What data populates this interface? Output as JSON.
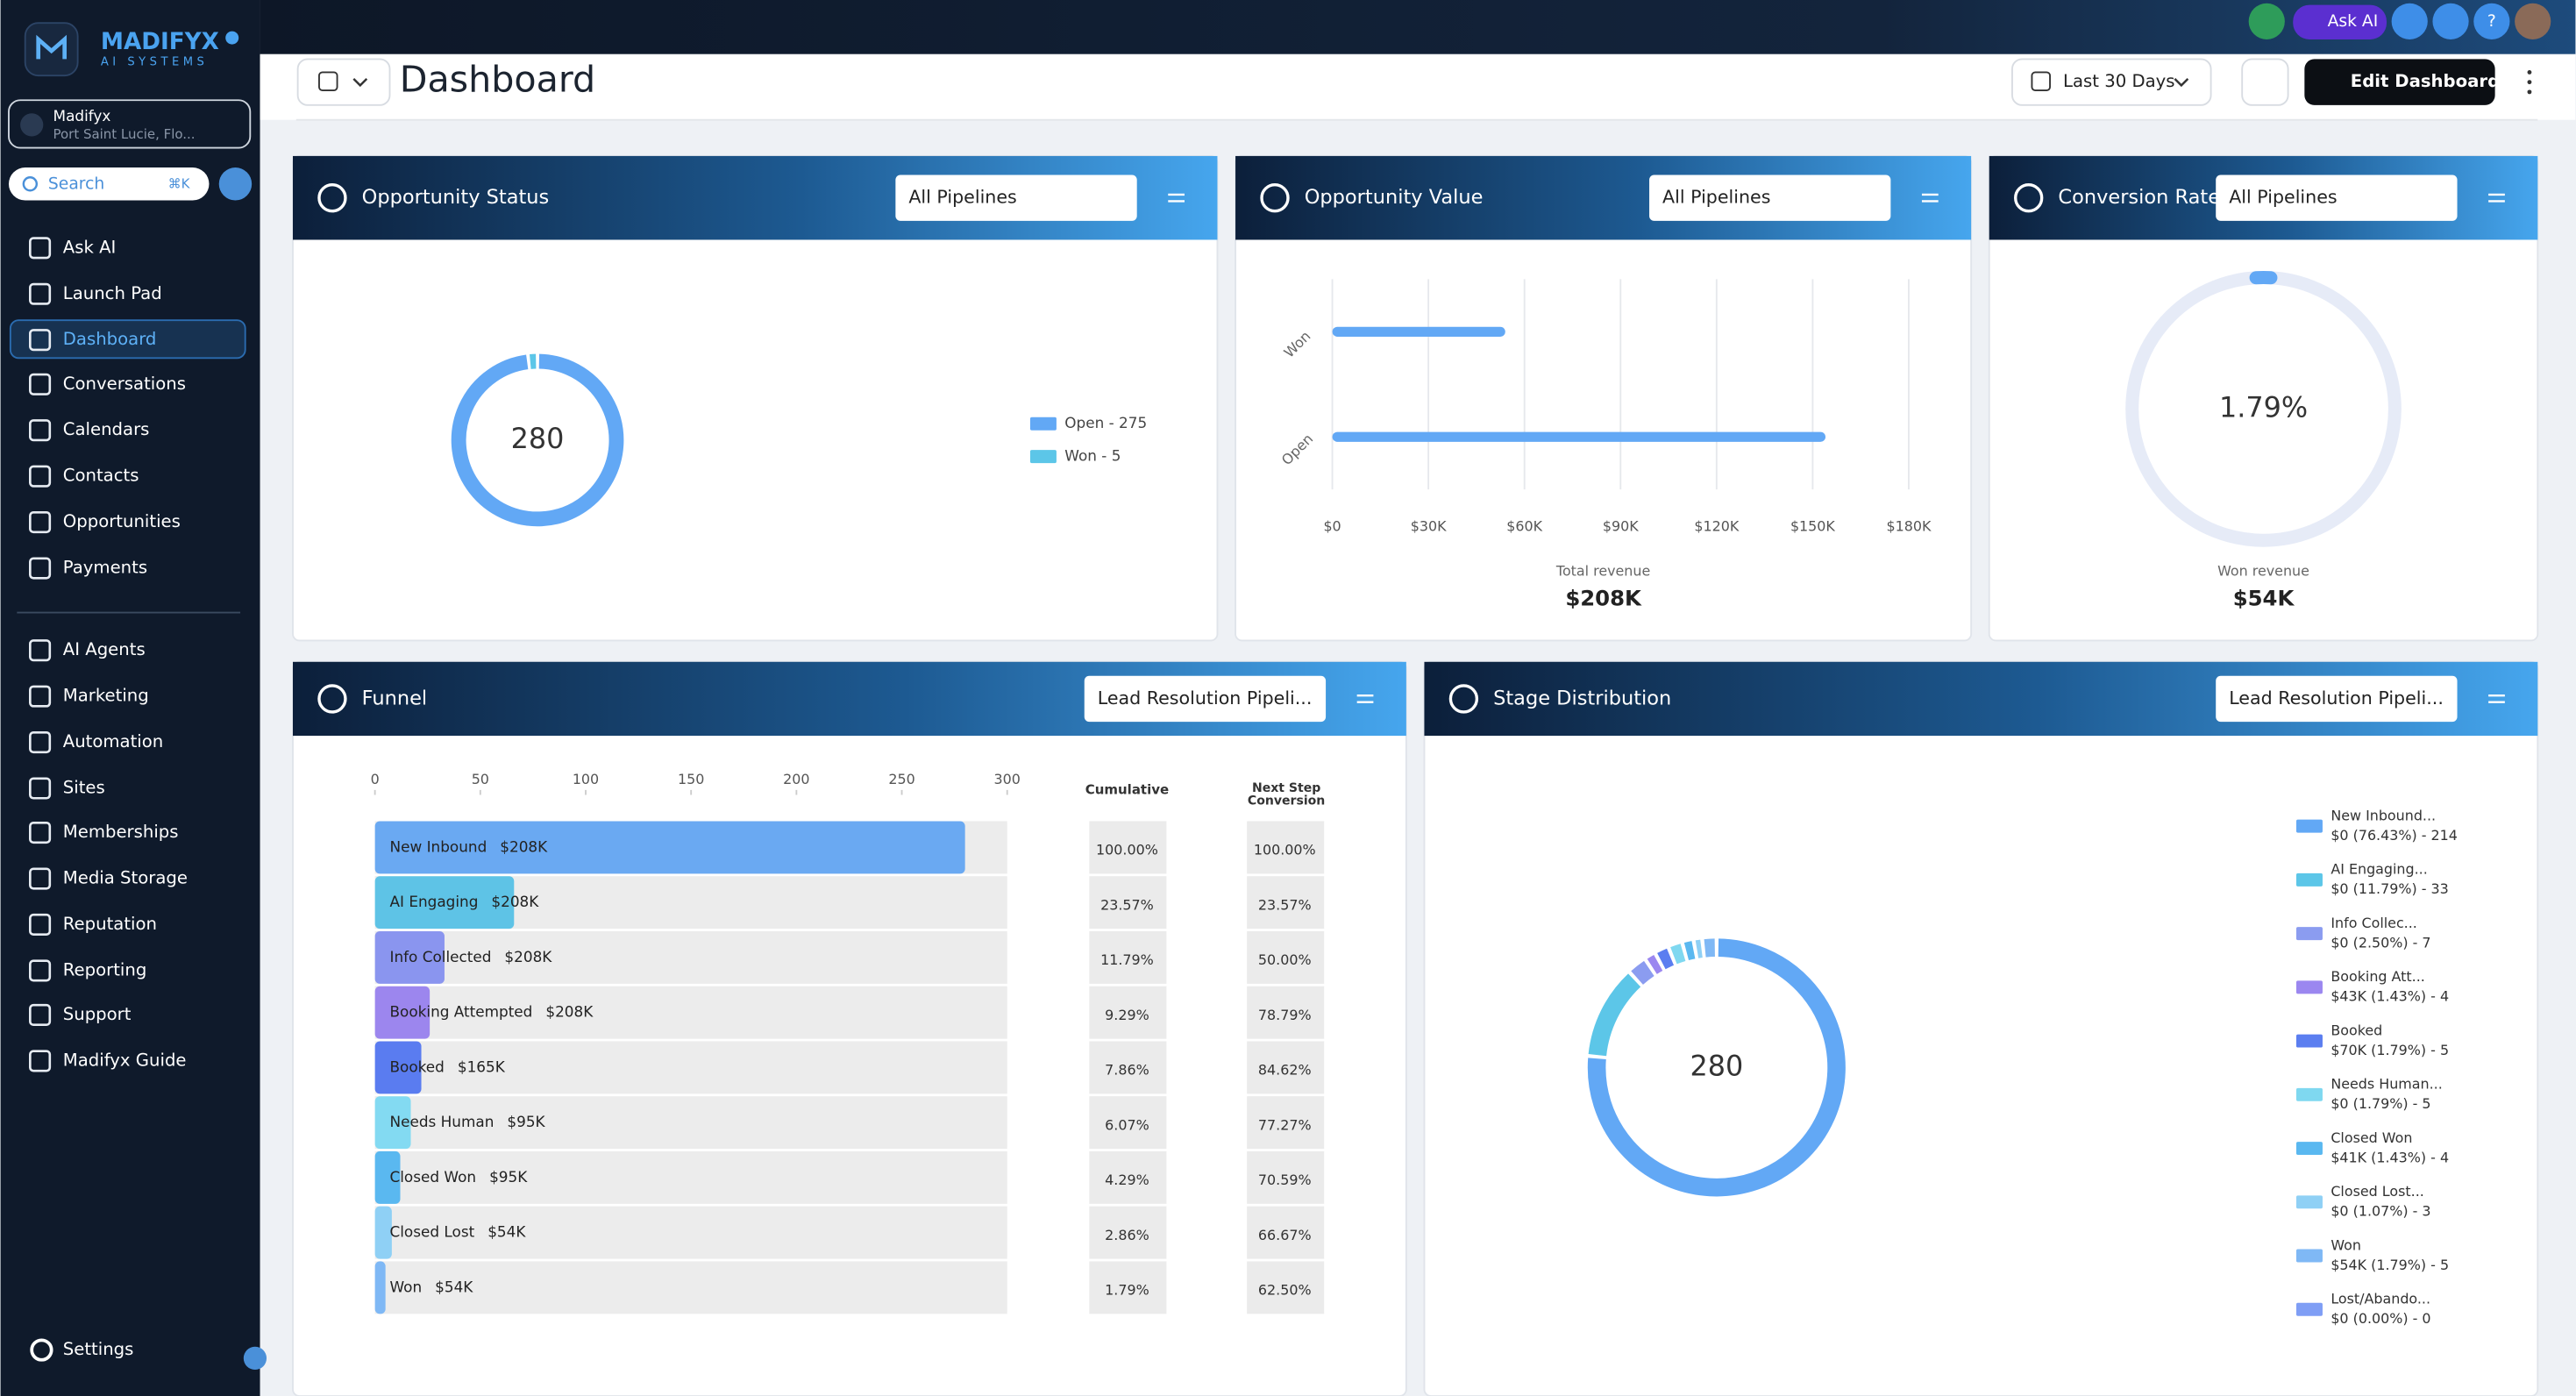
{
  "brand": {
    "name": "MADIFYX",
    "tagline": "AI SYSTEMS"
  },
  "account": {
    "name": "Madifyx",
    "location": "Port Saint Lucie, Flo..."
  },
  "search": {
    "placeholder": "Search",
    "shortcut": "⌘K"
  },
  "nav": [
    "Ask AI",
    "Launch Pad",
    "Dashboard",
    "Conversations",
    "Calendars",
    "Contacts",
    "Opportunities",
    "Payments"
  ],
  "nav2": [
    "AI Agents",
    "Marketing",
    "Automation",
    "Sites",
    "Memberships",
    "Media Storage",
    "Reputation",
    "Reporting",
    "Support",
    "Madifyx Guide"
  ],
  "settings": "Settings",
  "topbar": {
    "ask_ai": "Ask AI",
    "help": "?"
  },
  "header": {
    "title": "Dashboard",
    "date_range": "Last 30 Days",
    "edit": "Edit Dashboard"
  },
  "opportunity_status": {
    "title": "Opportunity Status",
    "filter": "All Pipelines",
    "total": 280,
    "legend": [
      {
        "label": "Open - 275",
        "value": 275,
        "color": "#62a8f5"
      },
      {
        "label": "Won - 5",
        "value": 5,
        "color": "#5cc6e8"
      }
    ]
  },
  "opportunity_value": {
    "title": "Opportunity Value",
    "filter": "All Pipelines",
    "type": "bar",
    "categories": [
      "Won",
      "Open"
    ],
    "values": [
      54000,
      154000
    ],
    "color": "#62a8f5",
    "xlim": [
      0,
      180000
    ],
    "xticks": [
      {
        "value": 0,
        "label": "$0"
      },
      {
        "value": 30000,
        "label": "$30K"
      },
      {
        "value": 60000,
        "label": "$60K"
      },
      {
        "value": 90000,
        "label": "$90K"
      },
      {
        "value": 120000,
        "label": "$120K"
      },
      {
        "value": 150000,
        "label": "$150K"
      },
      {
        "value": 180000,
        "label": "$180K"
      }
    ],
    "caption": "Total revenue",
    "total": "$208K"
  },
  "conversion_rate": {
    "title": "Conversion Rate",
    "filter": "All Pipelines",
    "value": 1.79,
    "value_label": "1.79%",
    "caption": "Won revenue",
    "total": "$54K"
  },
  "funnel": {
    "title": "Funnel",
    "filter": "Lead Resolution Pipeli...",
    "xlim": [
      0,
      300
    ],
    "xticks": [
      0,
      50,
      100,
      150,
      200,
      250,
      300
    ],
    "cumulative_header": "Cumulative",
    "next_header": "Next Step Conversion",
    "stages": [
      {
        "name": "New Inbound",
        "amount": "$208K",
        "value": 280,
        "color": "#6aa9f2",
        "cumulative": "100.00%",
        "next": "100.00%"
      },
      {
        "name": "AI Engaging",
        "amount": "$208K",
        "value": 66,
        "color": "#5ec3e6",
        "cumulative": "23.57%",
        "next": "23.57%"
      },
      {
        "name": "Info Collected",
        "amount": "$208K",
        "value": 33,
        "color": "#8a95ef",
        "cumulative": "11.79%",
        "next": "50.00%"
      },
      {
        "name": "Booking Attempted",
        "amount": "$208K",
        "value": 26,
        "color": "#9c86ee",
        "cumulative": "9.29%",
        "next": "78.79%"
      },
      {
        "name": "Booked",
        "amount": "$165K",
        "value": 22,
        "color": "#5a7cf0",
        "cumulative": "7.86%",
        "next": "84.62%"
      },
      {
        "name": "Needs Human",
        "amount": "$95K",
        "value": 17,
        "color": "#83daf2",
        "cumulative": "6.07%",
        "next": "77.27%"
      },
      {
        "name": "Closed Won",
        "amount": "$95K",
        "value": 12,
        "color": "#5ab8f0",
        "cumulative": "4.29%",
        "next": "70.59%"
      },
      {
        "name": "Closed Lost",
        "amount": "$54K",
        "value": 8,
        "color": "#8fd0f5",
        "cumulative": "2.86%",
        "next": "66.67%"
      },
      {
        "name": "Won",
        "amount": "$54K",
        "value": 5,
        "color": "#7fb8f5",
        "cumulative": "1.79%",
        "next": "62.50%"
      }
    ]
  },
  "stage_distribution": {
    "title": "Stage Distribution",
    "filter": "Lead Resolution Pipeli...",
    "total": 280,
    "items": [
      {
        "name": "New Inbound...",
        "detail": "$0 (76.43%) - 214",
        "value": 214,
        "color": "#62a8f5"
      },
      {
        "name": "AI Engaging...",
        "detail": "$0 (11.79%) - 33",
        "value": 33,
        "color": "#5cc6e8"
      },
      {
        "name": "Info Collec...",
        "detail": "$0 (2.50%) - 7",
        "value": 7,
        "color": "#8b9cf0"
      },
      {
        "name": "Booking Att...",
        "detail": "$43K (1.43%) - 4",
        "value": 4,
        "color": "#9b87f0"
      },
      {
        "name": "Booked",
        "detail": "$70K (1.79%) - 5",
        "value": 5,
        "color": "#5b7ef0"
      },
      {
        "name": "Needs Human...",
        "detail": "$0 (1.79%) - 5",
        "value": 5,
        "color": "#7fd8f0"
      },
      {
        "name": "Closed Won",
        "detail": "$41K (1.43%) - 4",
        "value": 4,
        "color": "#5ab8f0"
      },
      {
        "name": "Closed Lost...",
        "detail": "$0 (1.07%) - 3",
        "value": 3,
        "color": "#8fd0f5"
      },
      {
        "name": "Won",
        "detail": "$54K (1.79%) - 5",
        "value": 5,
        "color": "#7fb8f5"
      },
      {
        "name": "Lost/Abando...",
        "detail": "$0 (0.00%) - 0",
        "value": 0,
        "color": "#7f9ef5"
      }
    ]
  }
}
